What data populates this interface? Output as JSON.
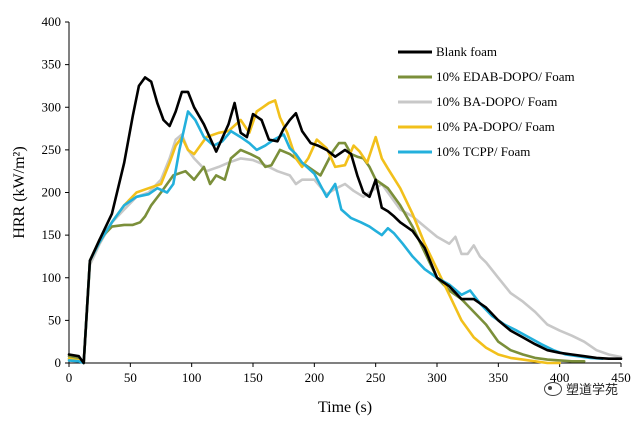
{
  "chart_data": {
    "type": "line",
    "title": "",
    "xlabel": "Time (s)",
    "ylabel": "HRR (kW/m²)",
    "xlim": [
      0,
      450
    ],
    "ylim": [
      0,
      400
    ],
    "xticks": [
      0,
      50,
      100,
      150,
      200,
      250,
      300,
      350,
      400,
      450
    ],
    "yticks": [
      0,
      50,
      100,
      150,
      200,
      250,
      300,
      350,
      400
    ],
    "grid": false,
    "legend": "top-right",
    "series": [
      {
        "name": "Blank foam",
        "color": "#000000",
        "points": [
          [
            0,
            10
          ],
          [
            8,
            8
          ],
          [
            12,
            0
          ],
          [
            17,
            120
          ],
          [
            25,
            145
          ],
          [
            35,
            175
          ],
          [
            45,
            235
          ],
          [
            52,
            290
          ],
          [
            57,
            325
          ],
          [
            62,
            335
          ],
          [
            67,
            330
          ],
          [
            72,
            305
          ],
          [
            77,
            285
          ],
          [
            82,
            278
          ],
          [
            87,
            295
          ],
          [
            92,
            318
          ],
          [
            97,
            318
          ],
          [
            102,
            300
          ],
          [
            110,
            280
          ],
          [
            120,
            248
          ],
          [
            130,
            280
          ],
          [
            135,
            305
          ],
          [
            140,
            270
          ],
          [
            145,
            265
          ],
          [
            150,
            292
          ],
          [
            157,
            285
          ],
          [
            163,
            262
          ],
          [
            170,
            260
          ],
          [
            175,
            275
          ],
          [
            180,
            285
          ],
          [
            185,
            293
          ],
          [
            190,
            272
          ],
          [
            197,
            258
          ],
          [
            203,
            255
          ],
          [
            210,
            250
          ],
          [
            217,
            242
          ],
          [
            225,
            250
          ],
          [
            230,
            245
          ],
          [
            235,
            220
          ],
          [
            240,
            200
          ],
          [
            245,
            195
          ],
          [
            250,
            215
          ],
          [
            255,
            182
          ],
          [
            260,
            178
          ],
          [
            265,
            172
          ],
          [
            270,
            165
          ],
          [
            275,
            160
          ],
          [
            280,
            155
          ],
          [
            290,
            135
          ],
          [
            300,
            100
          ],
          [
            310,
            90
          ],
          [
            320,
            75
          ],
          [
            330,
            75
          ],
          [
            340,
            65
          ],
          [
            350,
            50
          ],
          [
            360,
            38
          ],
          [
            370,
            30
          ],
          [
            380,
            22
          ],
          [
            390,
            15
          ],
          [
            400,
            12
          ],
          [
            410,
            10
          ],
          [
            420,
            8
          ],
          [
            430,
            6
          ],
          [
            440,
            5
          ],
          [
            450,
            5
          ]
        ]
      },
      {
        "name": "10%  EDAB-DOPO/ Foam",
        "color": "#7b8f3a",
        "points": [
          [
            0,
            8
          ],
          [
            8,
            5
          ],
          [
            12,
            0
          ],
          [
            17,
            120
          ],
          [
            25,
            145
          ],
          [
            35,
            160
          ],
          [
            45,
            162
          ],
          [
            52,
            162
          ],
          [
            58,
            165
          ],
          [
            62,
            172
          ],
          [
            67,
            185
          ],
          [
            75,
            200
          ],
          [
            85,
            220
          ],
          [
            95,
            225
          ],
          [
            102,
            215
          ],
          [
            110,
            230
          ],
          [
            115,
            210
          ],
          [
            120,
            220
          ],
          [
            127,
            215
          ],
          [
            132,
            240
          ],
          [
            140,
            250
          ],
          [
            148,
            245
          ],
          [
            155,
            240
          ],
          [
            160,
            230
          ],
          [
            165,
            232
          ],
          [
            172,
            250
          ],
          [
            180,
            245
          ],
          [
            185,
            240
          ],
          [
            195,
            230
          ],
          [
            205,
            220
          ],
          [
            215,
            248
          ],
          [
            220,
            258
          ],
          [
            225,
            258
          ],
          [
            230,
            245
          ],
          [
            235,
            242
          ],
          [
            240,
            240
          ],
          [
            245,
            230
          ],
          [
            250,
            215
          ],
          [
            255,
            210
          ],
          [
            260,
            205
          ],
          [
            270,
            185
          ],
          [
            280,
            160
          ],
          [
            290,
            130
          ],
          [
            300,
            100
          ],
          [
            310,
            85
          ],
          [
            320,
            75
          ],
          [
            330,
            60
          ],
          [
            340,
            45
          ],
          [
            350,
            25
          ],
          [
            360,
            15
          ],
          [
            370,
            10
          ],
          [
            380,
            6
          ],
          [
            390,
            4
          ],
          [
            400,
            3
          ],
          [
            410,
            2
          ],
          [
            420,
            2
          ]
        ]
      },
      {
        "name": "10%  BA-DOPO/ Foam",
        "color": "#c8c8c8",
        "points": [
          [
            0,
            5
          ],
          [
            8,
            3
          ],
          [
            12,
            0
          ],
          [
            17,
            115
          ],
          [
            25,
            140
          ],
          [
            35,
            165
          ],
          [
            45,
            180
          ],
          [
            55,
            195
          ],
          [
            65,
            200
          ],
          [
            75,
            215
          ],
          [
            82,
            240
          ],
          [
            87,
            262
          ],
          [
            92,
            268
          ],
          [
            97,
            250
          ],
          [
            102,
            240
          ],
          [
            112,
            225
          ],
          [
            122,
            230
          ],
          [
            130,
            235
          ],
          [
            140,
            240
          ],
          [
            150,
            238
          ],
          [
            160,
            232
          ],
          [
            170,
            225
          ],
          [
            180,
            220
          ],
          [
            185,
            210
          ],
          [
            190,
            215
          ],
          [
            200,
            215
          ],
          [
            210,
            198
          ],
          [
            218,
            205
          ],
          [
            225,
            210
          ],
          [
            232,
            202
          ],
          [
            240,
            195
          ],
          [
            250,
            205
          ],
          [
            255,
            210
          ],
          [
            260,
            200
          ],
          [
            270,
            180
          ],
          [
            280,
            172
          ],
          [
            290,
            160
          ],
          [
            300,
            148
          ],
          [
            310,
            140
          ],
          [
            315,
            148
          ],
          [
            320,
            128
          ],
          [
            325,
            128
          ],
          [
            330,
            138
          ],
          [
            335,
            125
          ],
          [
            340,
            118
          ],
          [
            350,
            100
          ],
          [
            360,
            82
          ],
          [
            370,
            72
          ],
          [
            380,
            60
          ],
          [
            390,
            45
          ],
          [
            400,
            38
          ],
          [
            410,
            32
          ],
          [
            420,
            25
          ],
          [
            430,
            15
          ],
          [
            440,
            10
          ],
          [
            450,
            7
          ]
        ]
      },
      {
        "name": "10% PA-DOPO/ Foam",
        "color": "#f2c01b",
        "points": [
          [
            0,
            5
          ],
          [
            8,
            3
          ],
          [
            12,
            0
          ],
          [
            17,
            120
          ],
          [
            25,
            142
          ],
          [
            35,
            165
          ],
          [
            45,
            185
          ],
          [
            55,
            200
          ],
          [
            65,
            205
          ],
          [
            75,
            210
          ],
          [
            82,
            235
          ],
          [
            87,
            255
          ],
          [
            92,
            265
          ],
          [
            97,
            250
          ],
          [
            102,
            245
          ],
          [
            112,
            265
          ],
          [
            122,
            270
          ],
          [
            130,
            272
          ],
          [
            140,
            285
          ],
          [
            147,
            270
          ],
          [
            153,
            295
          ],
          [
            158,
            300
          ],
          [
            163,
            305
          ],
          [
            168,
            308
          ],
          [
            172,
            288
          ],
          [
            178,
            270
          ],
          [
            185,
            240
          ],
          [
            190,
            230
          ],
          [
            195,
            240
          ],
          [
            202,
            262
          ],
          [
            210,
            252
          ],
          [
            217,
            230
          ],
          [
            225,
            232
          ],
          [
            232,
            255
          ],
          [
            237,
            248
          ],
          [
            243,
            235
          ],
          [
            250,
            265
          ],
          [
            255,
            240
          ],
          [
            260,
            228
          ],
          [
            270,
            205
          ],
          [
            280,
            175
          ],
          [
            290,
            140
          ],
          [
            300,
            110
          ],
          [
            310,
            80
          ],
          [
            320,
            50
          ],
          [
            330,
            30
          ],
          [
            340,
            18
          ],
          [
            350,
            10
          ],
          [
            360,
            6
          ],
          [
            370,
            4
          ],
          [
            380,
            2
          ],
          [
            390,
            0
          ],
          [
            400,
            0
          ]
        ]
      },
      {
        "name": "10% TCPP/ Foam",
        "color": "#23b0dc",
        "points": [
          [
            0,
            3
          ],
          [
            8,
            2
          ],
          [
            12,
            0
          ],
          [
            17,
            120
          ],
          [
            25,
            142
          ],
          [
            35,
            165
          ],
          [
            45,
            185
          ],
          [
            55,
            195
          ],
          [
            65,
            198
          ],
          [
            72,
            205
          ],
          [
            80,
            200
          ],
          [
            85,
            210
          ],
          [
            90,
            250
          ],
          [
            97,
            295
          ],
          [
            103,
            285
          ],
          [
            110,
            265
          ],
          [
            118,
            255
          ],
          [
            125,
            260
          ],
          [
            132,
            272
          ],
          [
            140,
            265
          ],
          [
            147,
            258
          ],
          [
            153,
            250
          ],
          [
            160,
            255
          ],
          [
            167,
            262
          ],
          [
            175,
            268
          ],
          [
            180,
            252
          ],
          [
            185,
            245
          ],
          [
            190,
            235
          ],
          [
            200,
            222
          ],
          [
            210,
            195
          ],
          [
            217,
            210
          ],
          [
            222,
            180
          ],
          [
            230,
            170
          ],
          [
            238,
            165
          ],
          [
            245,
            160
          ],
          [
            250,
            155
          ],
          [
            255,
            150
          ],
          [
            260,
            158
          ],
          [
            265,
            152
          ],
          [
            272,
            140
          ],
          [
            280,
            125
          ],
          [
            290,
            110
          ],
          [
            300,
            100
          ],
          [
            310,
            92
          ],
          [
            320,
            80
          ],
          [
            327,
            85
          ],
          [
            335,
            70
          ],
          [
            345,
            55
          ],
          [
            355,
            45
          ],
          [
            365,
            38
          ],
          [
            375,
            30
          ],
          [
            385,
            22
          ],
          [
            395,
            15
          ],
          [
            405,
            10
          ],
          [
            415,
            8
          ],
          [
            425,
            6
          ],
          [
            435,
            5
          ]
        ]
      }
    ]
  },
  "watermark": {
    "icon": "chat-bubble-icon",
    "label": "塑道学苑"
  }
}
